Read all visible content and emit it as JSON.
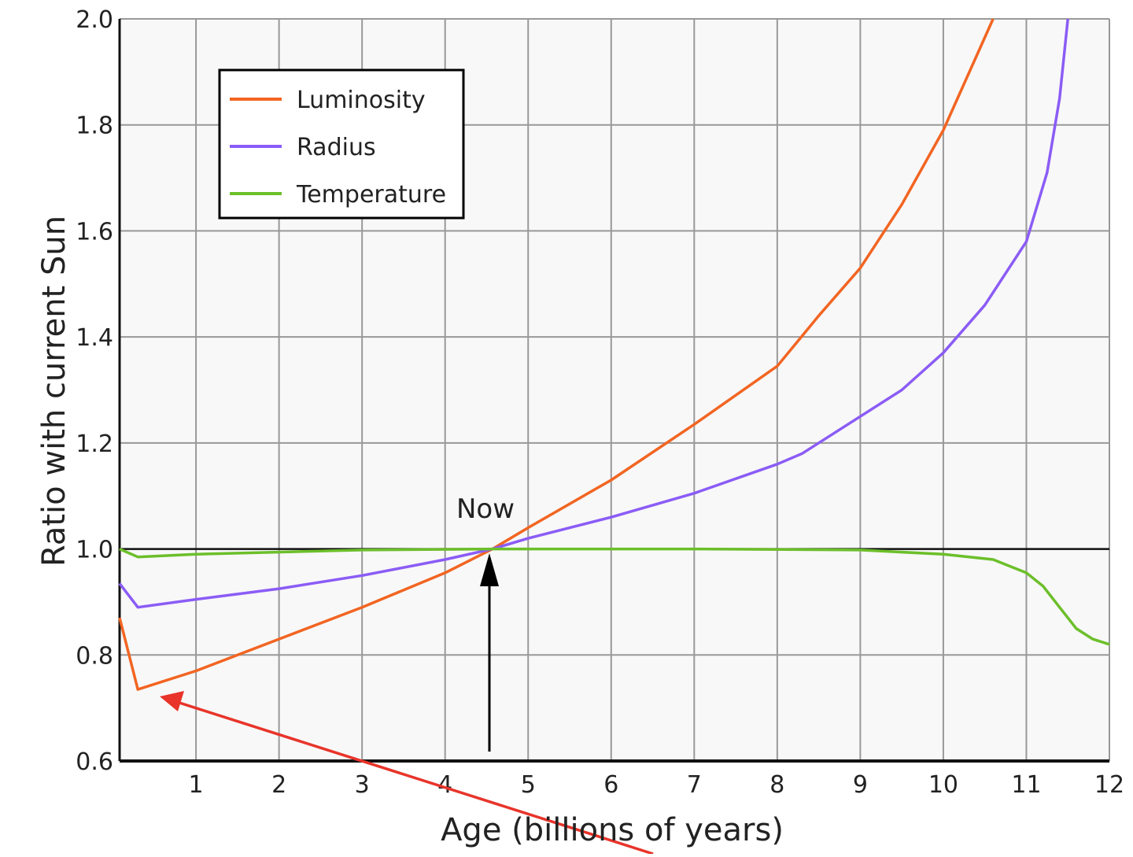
{
  "chart_data": {
    "type": "line",
    "title": "",
    "xlabel": "Age (billions of years)",
    "ylabel": "Ratio with current Sun",
    "xlim": [
      0.08,
      12
    ],
    "ylim": [
      0.6,
      2.0
    ],
    "xticks": [
      1,
      2,
      3,
      4,
      5,
      6,
      7,
      8,
      9,
      10,
      11,
      12
    ],
    "yticks": [
      0.6,
      0.8,
      1.0,
      1.2,
      1.4,
      1.6,
      1.8,
      2.0
    ],
    "ytick_labels": [
      "0.6",
      "0.8",
      "1.0",
      "1.2",
      "1.4",
      "1.6",
      "1.8",
      "2.0"
    ],
    "grid": true,
    "reference_line": 1.0,
    "legend_position": "top-left",
    "series": [
      {
        "name": "Luminosity",
        "color": "#f26522",
        "x": [
          0.08,
          0.3,
          1,
          2,
          3,
          4,
          4.57,
          5,
          6,
          7,
          8,
          8.5,
          9,
          9.5,
          10,
          10.6
        ],
        "y": [
          0.87,
          0.735,
          0.77,
          0.83,
          0.89,
          0.955,
          1.0,
          1.04,
          1.13,
          1.235,
          1.345,
          1.44,
          1.53,
          1.65,
          1.79,
          2.0
        ]
      },
      {
        "name": "Radius",
        "color": "#8b5cf6",
        "x": [
          0.08,
          0.3,
          1,
          2,
          3,
          4,
          4.57,
          5,
          6,
          7,
          8,
          8.3,
          9,
          9.5,
          10,
          10.5,
          11,
          11.25,
          11.4,
          11.5
        ],
        "y": [
          0.935,
          0.89,
          0.905,
          0.925,
          0.95,
          0.98,
          1.0,
          1.02,
          1.06,
          1.105,
          1.16,
          1.18,
          1.25,
          1.3,
          1.37,
          1.46,
          1.58,
          1.71,
          1.85,
          2.0
        ]
      },
      {
        "name": "Temperature",
        "color": "#6cbf2a",
        "x": [
          0.08,
          0.3,
          1,
          3,
          4.57,
          7,
          9,
          10,
          10.6,
          11,
          11.2,
          11.4,
          11.6,
          11.8,
          12
        ],
        "y": [
          1.0,
          0.985,
          0.99,
          0.998,
          1.0,
          1.0,
          0.998,
          0.99,
          0.98,
          0.955,
          0.93,
          0.89,
          0.85,
          0.83,
          0.82
        ]
      }
    ],
    "annotations": [
      {
        "text": "Now",
        "x": 4.57,
        "y": 1.0,
        "arrow_color": "#000000"
      },
      {
        "text": "",
        "x": 0.55,
        "y": 0.715,
        "arrow_color": "#e8342a"
      }
    ]
  }
}
